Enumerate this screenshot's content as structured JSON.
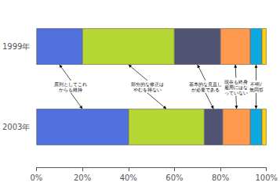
{
  "chart_data": {
    "type": "bar",
    "orientation": "horizontal",
    "stacked": true,
    "categories": [
      "1999年",
      "2003年"
    ],
    "series": [
      {
        "name": "原則としてこれ\nからも維持",
        "values": [
          20.0,
          40.0
        ]
      },
      {
        "name": "部分的な修正は\nやむを得ない",
        "values": [
          40.0,
          33.0
        ]
      },
      {
        "name": "基本的な見直し\nが必要である",
        "values": [
          20.0,
          8.0
        ]
      },
      {
        "name": "現在も終身\n雇用にはな\nっていない",
        "values": [
          13.0,
          12.0
        ]
      },
      {
        "name": "不明/\n無回答",
        "values": [
          5.0,
          5.0
        ]
      },
      {
        "values": [
          2.0,
          2.0
        ]
      }
    ],
    "xlim": [
      0,
      100
    ],
    "xticks": [
      {
        "value": 0,
        "label": "0%"
      },
      {
        "value": 20,
        "label": "20%"
      },
      {
        "value": 40,
        "label": "40%"
      },
      {
        "value": 60,
        "label": "60%"
      },
      {
        "value": 80,
        "label": "80%"
      },
      {
        "value": 100,
        "label": "100%"
      }
    ],
    "grid": false
  }
}
